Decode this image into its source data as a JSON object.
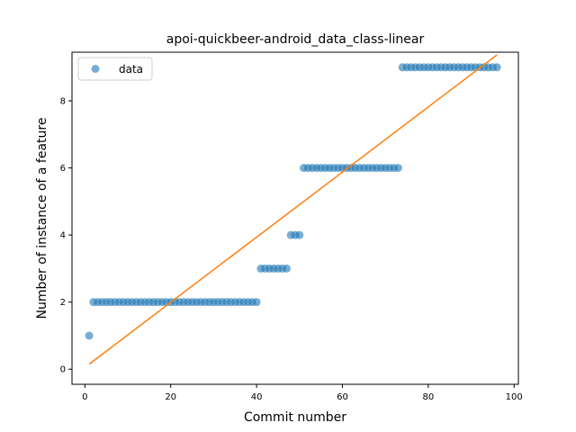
{
  "chart_data": {
    "type": "scatter",
    "title": "apoi-quickbeer-android_data_class-linear",
    "xlabel": "Commit number",
    "ylabel": "Number of instance of a feature",
    "xlim": [
      -3,
      101
    ],
    "ylim": [
      -0.45,
      9.45
    ],
    "xticks": [
      0,
      20,
      40,
      60,
      80,
      100
    ],
    "yticks": [
      0,
      2,
      4,
      6,
      8
    ],
    "grid": false,
    "legend_position": "top-left",
    "series": [
      {
        "name": "data",
        "kind": "points",
        "color": "#1f77b4",
        "runs": [
          {
            "x_start": 1,
            "x_end": 1,
            "y": 1
          },
          {
            "x_start": 2,
            "x_end": 40,
            "y": 2
          },
          {
            "x_start": 41,
            "x_end": 47,
            "y": 3
          },
          {
            "x_start": 48,
            "x_end": 50,
            "y": 4
          },
          {
            "x_start": 51,
            "x_end": 73,
            "y": 6
          },
          {
            "x_start": 74,
            "x_end": 96,
            "y": 9
          }
        ]
      },
      {
        "kind": "fit-line",
        "color": "#ff7f0e",
        "x": [
          1,
          96
        ],
        "y": [
          0.15,
          9.37
        ]
      }
    ]
  }
}
